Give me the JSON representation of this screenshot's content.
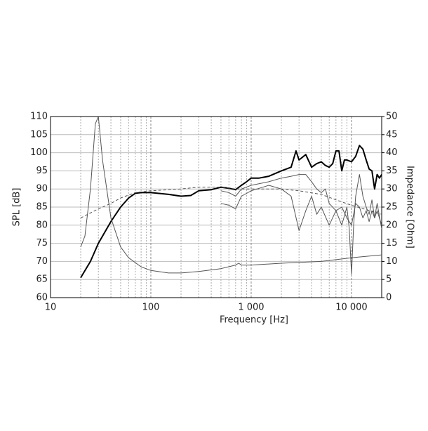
{
  "chart_data": {
    "type": "line",
    "xlabel": "Frequency [Hz]",
    "ylabel": "SPL [dB]",
    "y2label": "Impedance [Ohm]",
    "xscale": "log",
    "xlim": [
      10,
      20000
    ],
    "xticks": [
      10,
      100,
      {
        "value": 1000,
        "label": "1 000"
      },
      {
        "value": 10000,
        "label": "10 000"
      }
    ],
    "ylim": [
      60,
      110
    ],
    "yticks": [
      60,
      65,
      70,
      75,
      80,
      85,
      90,
      95,
      100,
      105,
      110
    ],
    "y2lim": [
      0,
      50
    ],
    "y2ticks": [
      0,
      5,
      10,
      15,
      20,
      25,
      30,
      35,
      40,
      45,
      50
    ],
    "grid": true,
    "minor_grid": true,
    "series": [
      {
        "color": "#000000",
        "line_width": 2,
        "dashed": false,
        "x": [
          20,
          25,
          30,
          40,
          50,
          60,
          70,
          80,
          100,
          150,
          200,
          250,
          300,
          400,
          500,
          600,
          700,
          800,
          900,
          1000,
          1200,
          1500,
          2000,
          2500,
          2800,
          3000,
          3500,
          4000,
          4500,
          5000,
          5500,
          6000,
          6500,
          7000,
          7500,
          8000,
          8500,
          9000,
          10000,
          11000,
          12000,
          13000,
          14000,
          15000,
          16000,
          17000,
          18000,
          19000,
          20000
        ],
        "values": [
          65.5,
          70,
          75,
          81,
          85,
          87.5,
          88.8,
          89,
          89,
          88.5,
          88,
          88.2,
          89.5,
          89.8,
          90.5,
          90.2,
          89.8,
          91,
          92,
          93,
          93,
          93.5,
          95,
          96,
          100.5,
          98,
          99.5,
          96,
          97,
          97.5,
          96.5,
          96,
          97,
          100.5,
          100.5,
          95,
          98,
          98,
          97.5,
          99,
          102,
          101,
          98,
          95.5,
          95,
          90,
          94,
          93,
          94
        ]
      },
      {
        "color": "#555555",
        "line_width": 1,
        "dashed": false,
        "x": [
          500,
          600,
          700,
          800,
          1000,
          1500,
          2000,
          2500,
          3000,
          3500,
          4000,
          4500,
          5000,
          5500,
          6000,
          7000,
          8000,
          9000,
          10000,
          11000,
          12000,
          13000,
          14000,
          15000,
          16000,
          17000,
          18000,
          20000
        ],
        "values": [
          89.5,
          89,
          88,
          90,
          91,
          92,
          93,
          93.5,
          94,
          94,
          92,
          90,
          89,
          90,
          86,
          84,
          85,
          82,
          80,
          86,
          85,
          82,
          84,
          81,
          84,
          82,
          86,
          79
        ]
      },
      {
        "color": "#555555",
        "line_width": 1,
        "dashed": false,
        "x": [
          500,
          600,
          700,
          800,
          1000,
          1500,
          2000,
          2500,
          3000,
          3500,
          4000,
          4500,
          5000,
          6000,
          7000,
          8000,
          9000,
          9500,
          10000,
          10500,
          11000,
          12000,
          13000,
          14000,
          15000,
          16000,
          17000,
          18000,
          20000
        ],
        "values": [
          86,
          85.5,
          84.5,
          88,
          89.5,
          91,
          90,
          88,
          78.5,
          84,
          88,
          83,
          85,
          80,
          84,
          80,
          85,
          79,
          66.5,
          80,
          88,
          94,
          88,
          85,
          83,
          87,
          82,
          84,
          80
        ]
      },
      {
        "color": "#555555",
        "line_width": 1,
        "dashed": true,
        "x": [
          20,
          30,
          40,
          50,
          70,
          100,
          200,
          300,
          500,
          700,
          1000,
          2000,
          3000,
          5000,
          7000,
          10000,
          20000
        ],
        "values": [
          82,
          84.5,
          86,
          87.5,
          89,
          89.5,
          90,
          90.5,
          90.5,
          90,
          90,
          90,
          89.5,
          88.5,
          87,
          85.5,
          83
        ]
      },
      {
        "color": "#555555",
        "line_width": 1,
        "dashed": false,
        "axis": "y2",
        "x": [
          20,
          22,
          25,
          28,
          30,
          33,
          40,
          50,
          60,
          80,
          100,
          150,
          200,
          300,
          500,
          700,
          750,
          800,
          1000,
          2000,
          5000,
          10000,
          20000
        ],
        "values": [
          14,
          17,
          30,
          48,
          50,
          38,
          22,
          14,
          11,
          8.5,
          7.5,
          6.8,
          6.8,
          7.2,
          8,
          9,
          9.5,
          9,
          9,
          9.5,
          10,
          11,
          11.8
        ]
      }
    ]
  }
}
